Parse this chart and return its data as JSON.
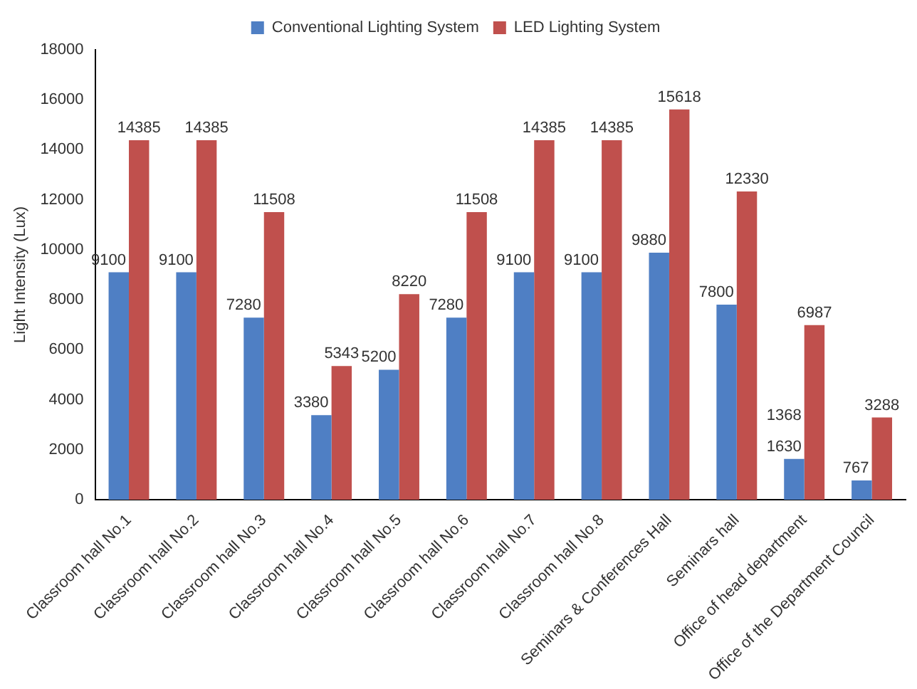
{
  "chart_data": {
    "type": "bar",
    "ylabel": "Light Intensity (Lux)",
    "categories": [
      "Classroom hall No.1",
      "Classroom hall No.2",
      "Classroom hall No.3",
      "Classroom hall No.4",
      "Classroom hall No.5",
      "Classroom hall No.6",
      "Classroom hall No.7",
      "Classroom hall No.8",
      "Seminars & Conferences Hall",
      "Seminars hall",
      "Office of head department",
      "Office of the Department Council"
    ],
    "series": [
      {
        "name": "Conventional Lighting System",
        "color": "#4f7fc4",
        "values": [
          9100,
          9100,
          7280,
          3380,
          5200,
          7280,
          9100,
          9100,
          9880,
          7800,
          1630,
          767
        ]
      },
      {
        "name": "LED Lighting System",
        "color": "#c0504d",
        "values": [
          14385,
          14385,
          11508,
          5343,
          8220,
          11508,
          14385,
          14385,
          15618,
          12330,
          6987,
          3288
        ]
      }
    ],
    "ylim": [
      0,
      18000
    ],
    "yticks": [
      0,
      2000,
      4000,
      6000,
      8000,
      10000,
      12000,
      14000,
      16000,
      18000
    ],
    "grid": false,
    "legend": "top",
    "data_labels": true,
    "annotations": [
      "1368"
    ]
  }
}
